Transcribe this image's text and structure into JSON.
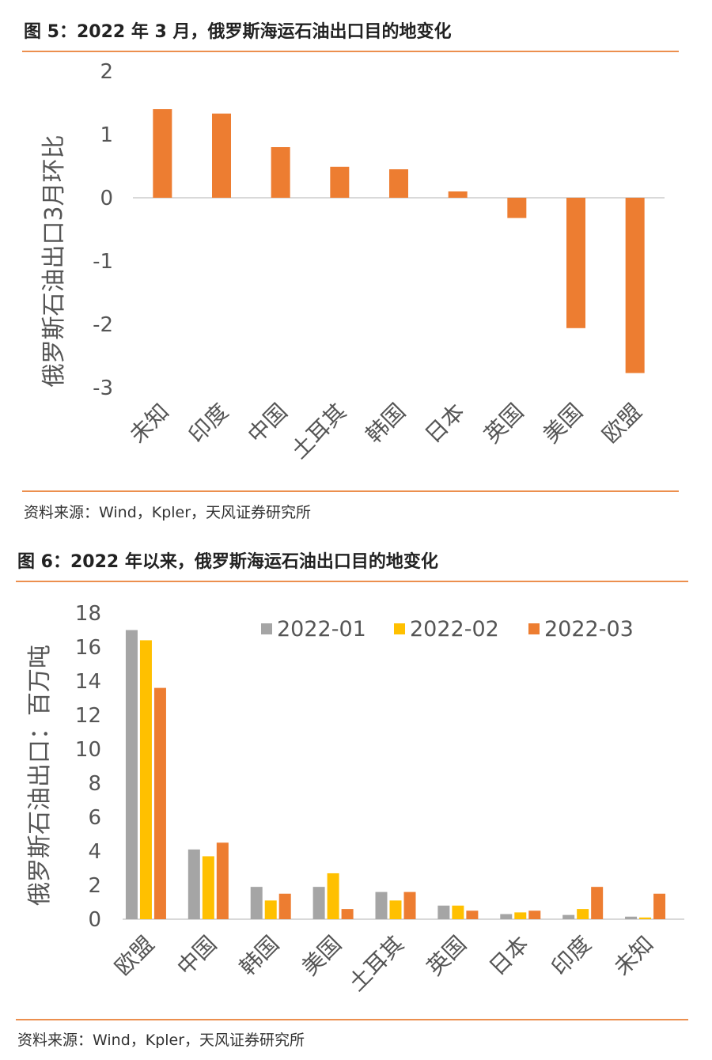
{
  "figure1": {
    "title": "图 5：2022 年 3 月，俄罗斯海运石油出口目的地变化",
    "source": "资料来源：Wind，Kpler，天风证券研究所",
    "chart_data": {
      "type": "bar",
      "ylabel": "俄罗斯石油出口3月环比",
      "ylim": [
        -3,
        2
      ],
      "yticks": [
        2,
        1,
        0,
        -1,
        -2,
        -3
      ],
      "categories": [
        "未知",
        "印度",
        "中国",
        "土耳其",
        "韩国",
        "日本",
        "英国",
        "美国",
        "欧盟"
      ],
      "values": [
        1.4,
        1.33,
        0.8,
        0.49,
        0.45,
        0.1,
        -0.32,
        -2.06,
        -2.77
      ],
      "color": "#ed7d31",
      "grid": false
    }
  },
  "figure2": {
    "title": "图 6：2022 年以来，俄罗斯海运石油出口目的地变化",
    "source": "资料来源：Wind，Kpler，天风证券研究所",
    "chart_data": {
      "type": "bar",
      "ylabel": "俄罗斯石油出口：百万吨",
      "ylim": [
        0,
        18
      ],
      "yticks": [
        18,
        16,
        14,
        12,
        10,
        8,
        6,
        4,
        2,
        0
      ],
      "categories": [
        "欧盟",
        "中国",
        "韩国",
        "美国",
        "土耳其",
        "英国",
        "日本",
        "印度",
        "未知"
      ],
      "legend_position": "top-right",
      "grid": false,
      "series": [
        {
          "name": "2022-01",
          "color": "#a5a5a5",
          "values": [
            17.0,
            4.1,
            1.9,
            1.9,
            1.6,
            0.8,
            0.3,
            0.25,
            0.15
          ]
        },
        {
          "name": "2022-02",
          "color": "#ffc000",
          "values": [
            16.4,
            3.7,
            1.1,
            2.7,
            1.1,
            0.8,
            0.4,
            0.6,
            0.1
          ]
        },
        {
          "name": "2022-03",
          "color": "#ed7d31",
          "values": [
            13.6,
            4.5,
            1.5,
            0.6,
            1.6,
            0.5,
            0.5,
            1.9,
            1.5
          ]
        }
      ]
    }
  }
}
